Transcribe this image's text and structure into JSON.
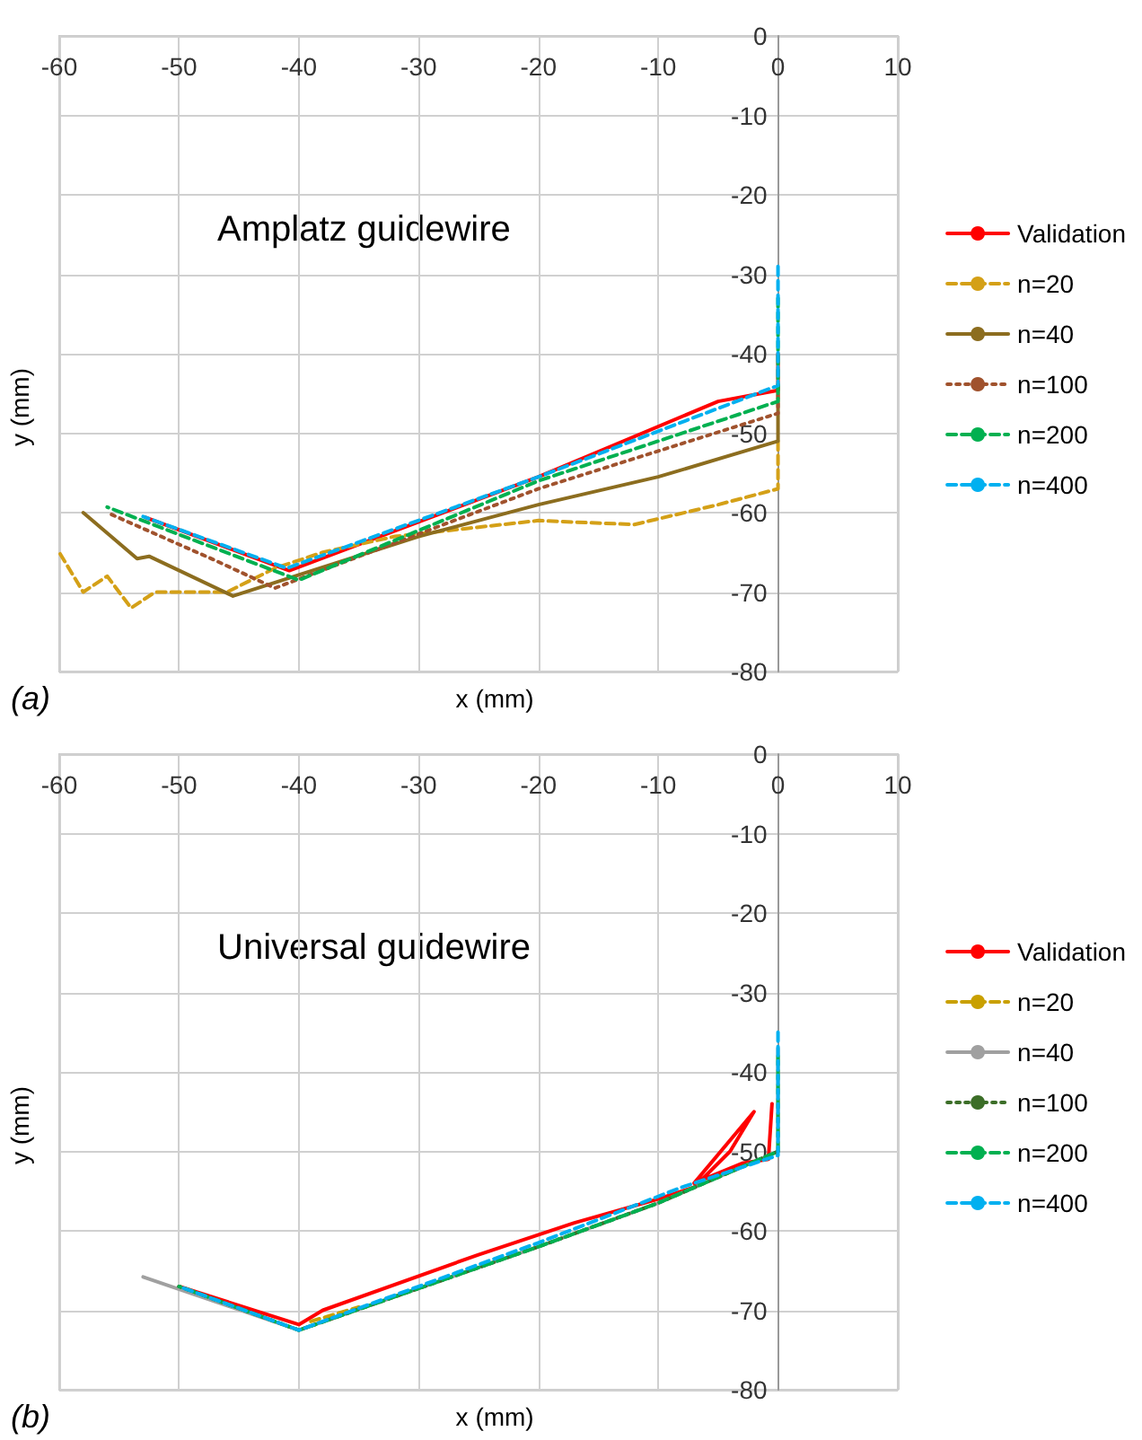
{
  "chart_data": [
    {
      "type": "line",
      "title": "Amplatz guidewire",
      "xlabel": "x (mm)",
      "ylabel": "y (mm)",
      "annotations": [
        "(a)"
      ],
      "xlim": [
        -60,
        10
      ],
      "xticks": [
        -60,
        -50,
        -40,
        -30,
        -20,
        -10,
        0,
        10
      ],
      "ylim": [
        -80,
        0
      ],
      "yticks": [
        -80,
        -70,
        -60,
        -50,
        -40,
        -30,
        -20,
        -10,
        0
      ],
      "grid": true,
      "legend": "right",
      "marker": "none",
      "series": [
        {
          "name": "Validation",
          "color": "#ff0000",
          "line_style": "solid",
          "x": [
            0,
            0,
            -5,
            -20,
            -40.8,
            -52.8
          ],
          "values": [
            -40,
            -44.6,
            -46,
            -55.5,
            -67.3,
            -60.6
          ]
        },
        {
          "name": "n=20",
          "color": "#d4a017",
          "line_style": "dashed",
          "x": [
            0,
            0,
            -5,
            -12,
            -20,
            -26,
            -32,
            -38,
            -42,
            -46,
            -52,
            -54,
            -56,
            -58,
            -60
          ],
          "values": [
            -51,
            -57,
            -59,
            -61.5,
            -61,
            -62,
            -63,
            -65,
            -67,
            -70,
            -70,
            -72,
            -68,
            -70,
            -65
          ]
        },
        {
          "name": "n=40",
          "color": "#8c6d1f",
          "line_style": "solid",
          "x": [
            0,
            0,
            -10,
            -20,
            -30,
            -45.5,
            -52.5,
            -53.5,
            -58
          ],
          "values": [
            -44,
            -51,
            -55.5,
            -59,
            -63,
            -70.5,
            -65.5,
            -65.8,
            -60
          ]
        },
        {
          "name": "n=100",
          "color": "#a0522d",
          "line_style": "dotted",
          "x": [
            0,
            0,
            -20,
            -42,
            -47,
            -56
          ],
          "values": [
            -44,
            -47.5,
            -57,
            -69.5,
            -66,
            -60
          ]
        },
        {
          "name": "n=200",
          "color": "#00b050",
          "line_style": "dashed",
          "x": [
            0,
            0,
            -20,
            -40,
            -56
          ],
          "values": [
            -33,
            -46,
            -56,
            -68.5,
            -59.3
          ]
        },
        {
          "name": "n=400",
          "color": "#00b0f0",
          "line_style": "dashed",
          "x": [
            0,
            0,
            -20,
            -41,
            -53
          ],
          "values": [
            -29,
            -44,
            -55.5,
            -67,
            -60.5
          ]
        }
      ]
    },
    {
      "type": "line",
      "title": "Universal guidewire",
      "xlabel": "x (mm)",
      "ylabel": "y (mm)",
      "annotations": [
        "(b)"
      ],
      "xlim": [
        -60,
        10
      ],
      "xticks": [
        -60,
        -50,
        -40,
        -30,
        -20,
        -10,
        0,
        10
      ],
      "ylim": [
        -80,
        0
      ],
      "yticks": [
        -80,
        -70,
        -60,
        -50,
        -40,
        -30,
        -20,
        -10,
        0
      ],
      "grid": true,
      "legend": "right",
      "marker": "none",
      "series": [
        {
          "name": "Validation",
          "color": "#ff0000",
          "line_style": "solid",
          "x": [
            -0.5,
            -0.8,
            -3,
            -7,
            -2,
            -4,
            -7,
            -10,
            -17,
            -25,
            -38,
            -40,
            -50
          ],
          "values": [
            -44,
            -51,
            -51.5,
            -54,
            -45,
            -50,
            -54.5,
            -56,
            -59,
            -63,
            -70,
            -71.8,
            -67
          ]
        },
        {
          "name": "n=20",
          "color": "#c9a000",
          "line_style": "dashed",
          "x": [
            -39,
            -35
          ],
          "values": [
            -71.4,
            -69.6
          ]
        },
        {
          "name": "n=40",
          "color": "#a0a0a0",
          "line_style": "solid",
          "x": [
            0,
            0,
            -10,
            -20,
            -40,
            -53
          ],
          "values": [
            -37,
            -50,
            -56.5,
            -62,
            -72.5,
            -65.8
          ]
        },
        {
          "name": "n=100",
          "color": "#3c6e28",
          "line_style": "dotted",
          "x": [
            0,
            -10,
            -20,
            -40,
            -50
          ],
          "values": [
            -50,
            -56.5,
            -62,
            -72.5,
            -67
          ]
        },
        {
          "name": "n=200",
          "color": "#00b050",
          "line_style": "dashed",
          "x": [
            0,
            0,
            -10,
            -20,
            -40,
            -50
          ],
          "values": [
            -38,
            -50,
            -56.5,
            -62,
            -72.5,
            -67
          ]
        },
        {
          "name": "n=400",
          "color": "#00b0f0",
          "line_style": "dashed",
          "x": [
            0,
            0,
            -8,
            -20,
            -40,
            -50
          ],
          "values": [
            -35,
            -50.5,
            -54.5,
            -61.5,
            -72.5,
            -67
          ]
        }
      ]
    }
  ]
}
